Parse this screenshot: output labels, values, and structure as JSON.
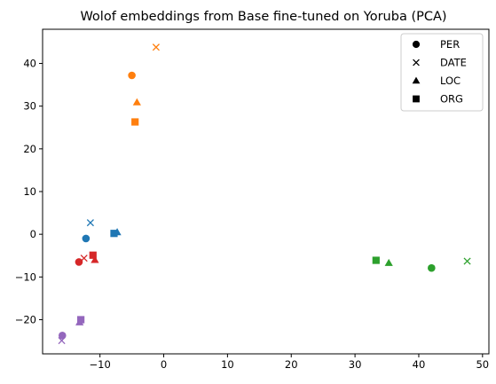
{
  "chart_data": {
    "type": "scatter",
    "title": "Wolof embeddings from Base fine-tuned on Yoruba (PCA)",
    "xlabel": "",
    "ylabel": "",
    "xlim": [
      -19,
      51
    ],
    "ylim": [
      -28,
      48
    ],
    "xticks": [
      -10,
      0,
      10,
      20,
      30,
      40,
      50
    ],
    "yticks": [
      -20,
      -10,
      0,
      10,
      20,
      30,
      40
    ],
    "grid": false,
    "legend": {
      "placement": "top-right",
      "entries": [
        {
          "label": "PER",
          "marker": "circle"
        },
        {
          "label": "DATE",
          "marker": "x"
        },
        {
          "label": "LOC",
          "marker": "triangle"
        },
        {
          "label": "ORG",
          "marker": "square"
        }
      ]
    },
    "marker_by_type": {
      "PER": "circle",
      "DATE": "x",
      "LOC": "triangle",
      "ORG": "square"
    },
    "groups": [
      {
        "color": "#1f77b4",
        "points": [
          {
            "type": "PER",
            "x": -12.2,
            "y": -1.0
          },
          {
            "type": "DATE",
            "x": -11.5,
            "y": 2.7
          },
          {
            "type": "LOC",
            "x": -7.3,
            "y": 0.5
          },
          {
            "type": "ORG",
            "x": -7.8,
            "y": 0.2
          }
        ]
      },
      {
        "color": "#ff7f0e",
        "points": [
          {
            "type": "PER",
            "x": -5.0,
            "y": 37.2
          },
          {
            "type": "DATE",
            "x": -1.2,
            "y": 43.8
          },
          {
            "type": "LOC",
            "x": -4.2,
            "y": 30.9
          },
          {
            "type": "ORG",
            "x": -4.5,
            "y": 26.3
          }
        ]
      },
      {
        "color": "#2ca02c",
        "points": [
          {
            "type": "PER",
            "x": 42.0,
            "y": -7.9
          },
          {
            "type": "DATE",
            "x": 47.6,
            "y": -6.3
          },
          {
            "type": "LOC",
            "x": 35.3,
            "y": -6.7
          },
          {
            "type": "ORG",
            "x": 33.3,
            "y": -6.1
          }
        ]
      },
      {
        "color": "#d62728",
        "points": [
          {
            "type": "PER",
            "x": -13.3,
            "y": -6.5
          },
          {
            "type": "DATE",
            "x": -12.5,
            "y": -5.6
          },
          {
            "type": "LOC",
            "x": -10.8,
            "y": -6.0
          },
          {
            "type": "ORG",
            "x": -11.1,
            "y": -4.9
          }
        ]
      },
      {
        "color": "#9467bd",
        "points": [
          {
            "type": "PER",
            "x": -15.9,
            "y": -23.7
          },
          {
            "type": "DATE",
            "x": -16.0,
            "y": -24.9
          },
          {
            "type": "LOC",
            "x": -13.2,
            "y": -20.6
          },
          {
            "type": "ORG",
            "x": -13.0,
            "y": -20.0
          }
        ]
      }
    ]
  }
}
